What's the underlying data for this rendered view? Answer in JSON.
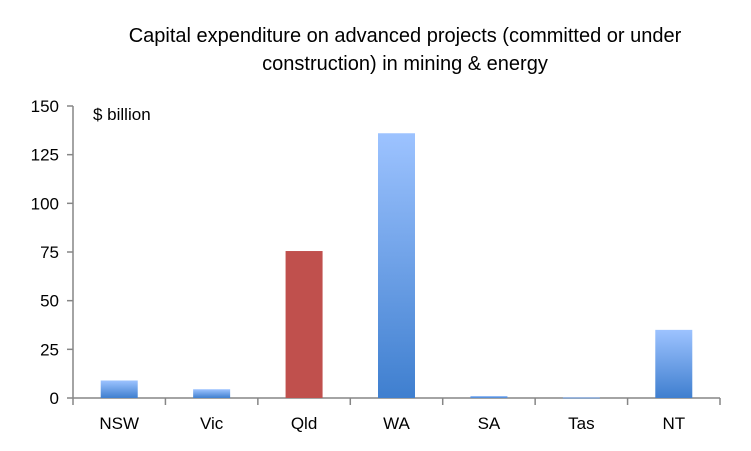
{
  "chart_data": {
    "type": "bar",
    "title": [
      "Capital expenditure on advanced projects (committed or under",
      "construction) in mining & energy"
    ],
    "ylabel": "$ billion",
    "xlabel": "",
    "categories": [
      "NSW",
      "Vic",
      "Qld",
      "WA",
      "SA",
      "Tas",
      "NT"
    ],
    "values": [
      9,
      4.5,
      75.5,
      136,
      1,
      0.3,
      35
    ],
    "highlight": "Qld",
    "ylim": [
      0,
      150
    ],
    "yticks": [
      0,
      25,
      50,
      75,
      100,
      125,
      150
    ],
    "grid": false,
    "legend": "none",
    "colors": {
      "bar_top": "#9dc3ff",
      "bar_bottom": "#3f7fcf",
      "highlight": "#c0504d",
      "axis": "#868686"
    }
  }
}
